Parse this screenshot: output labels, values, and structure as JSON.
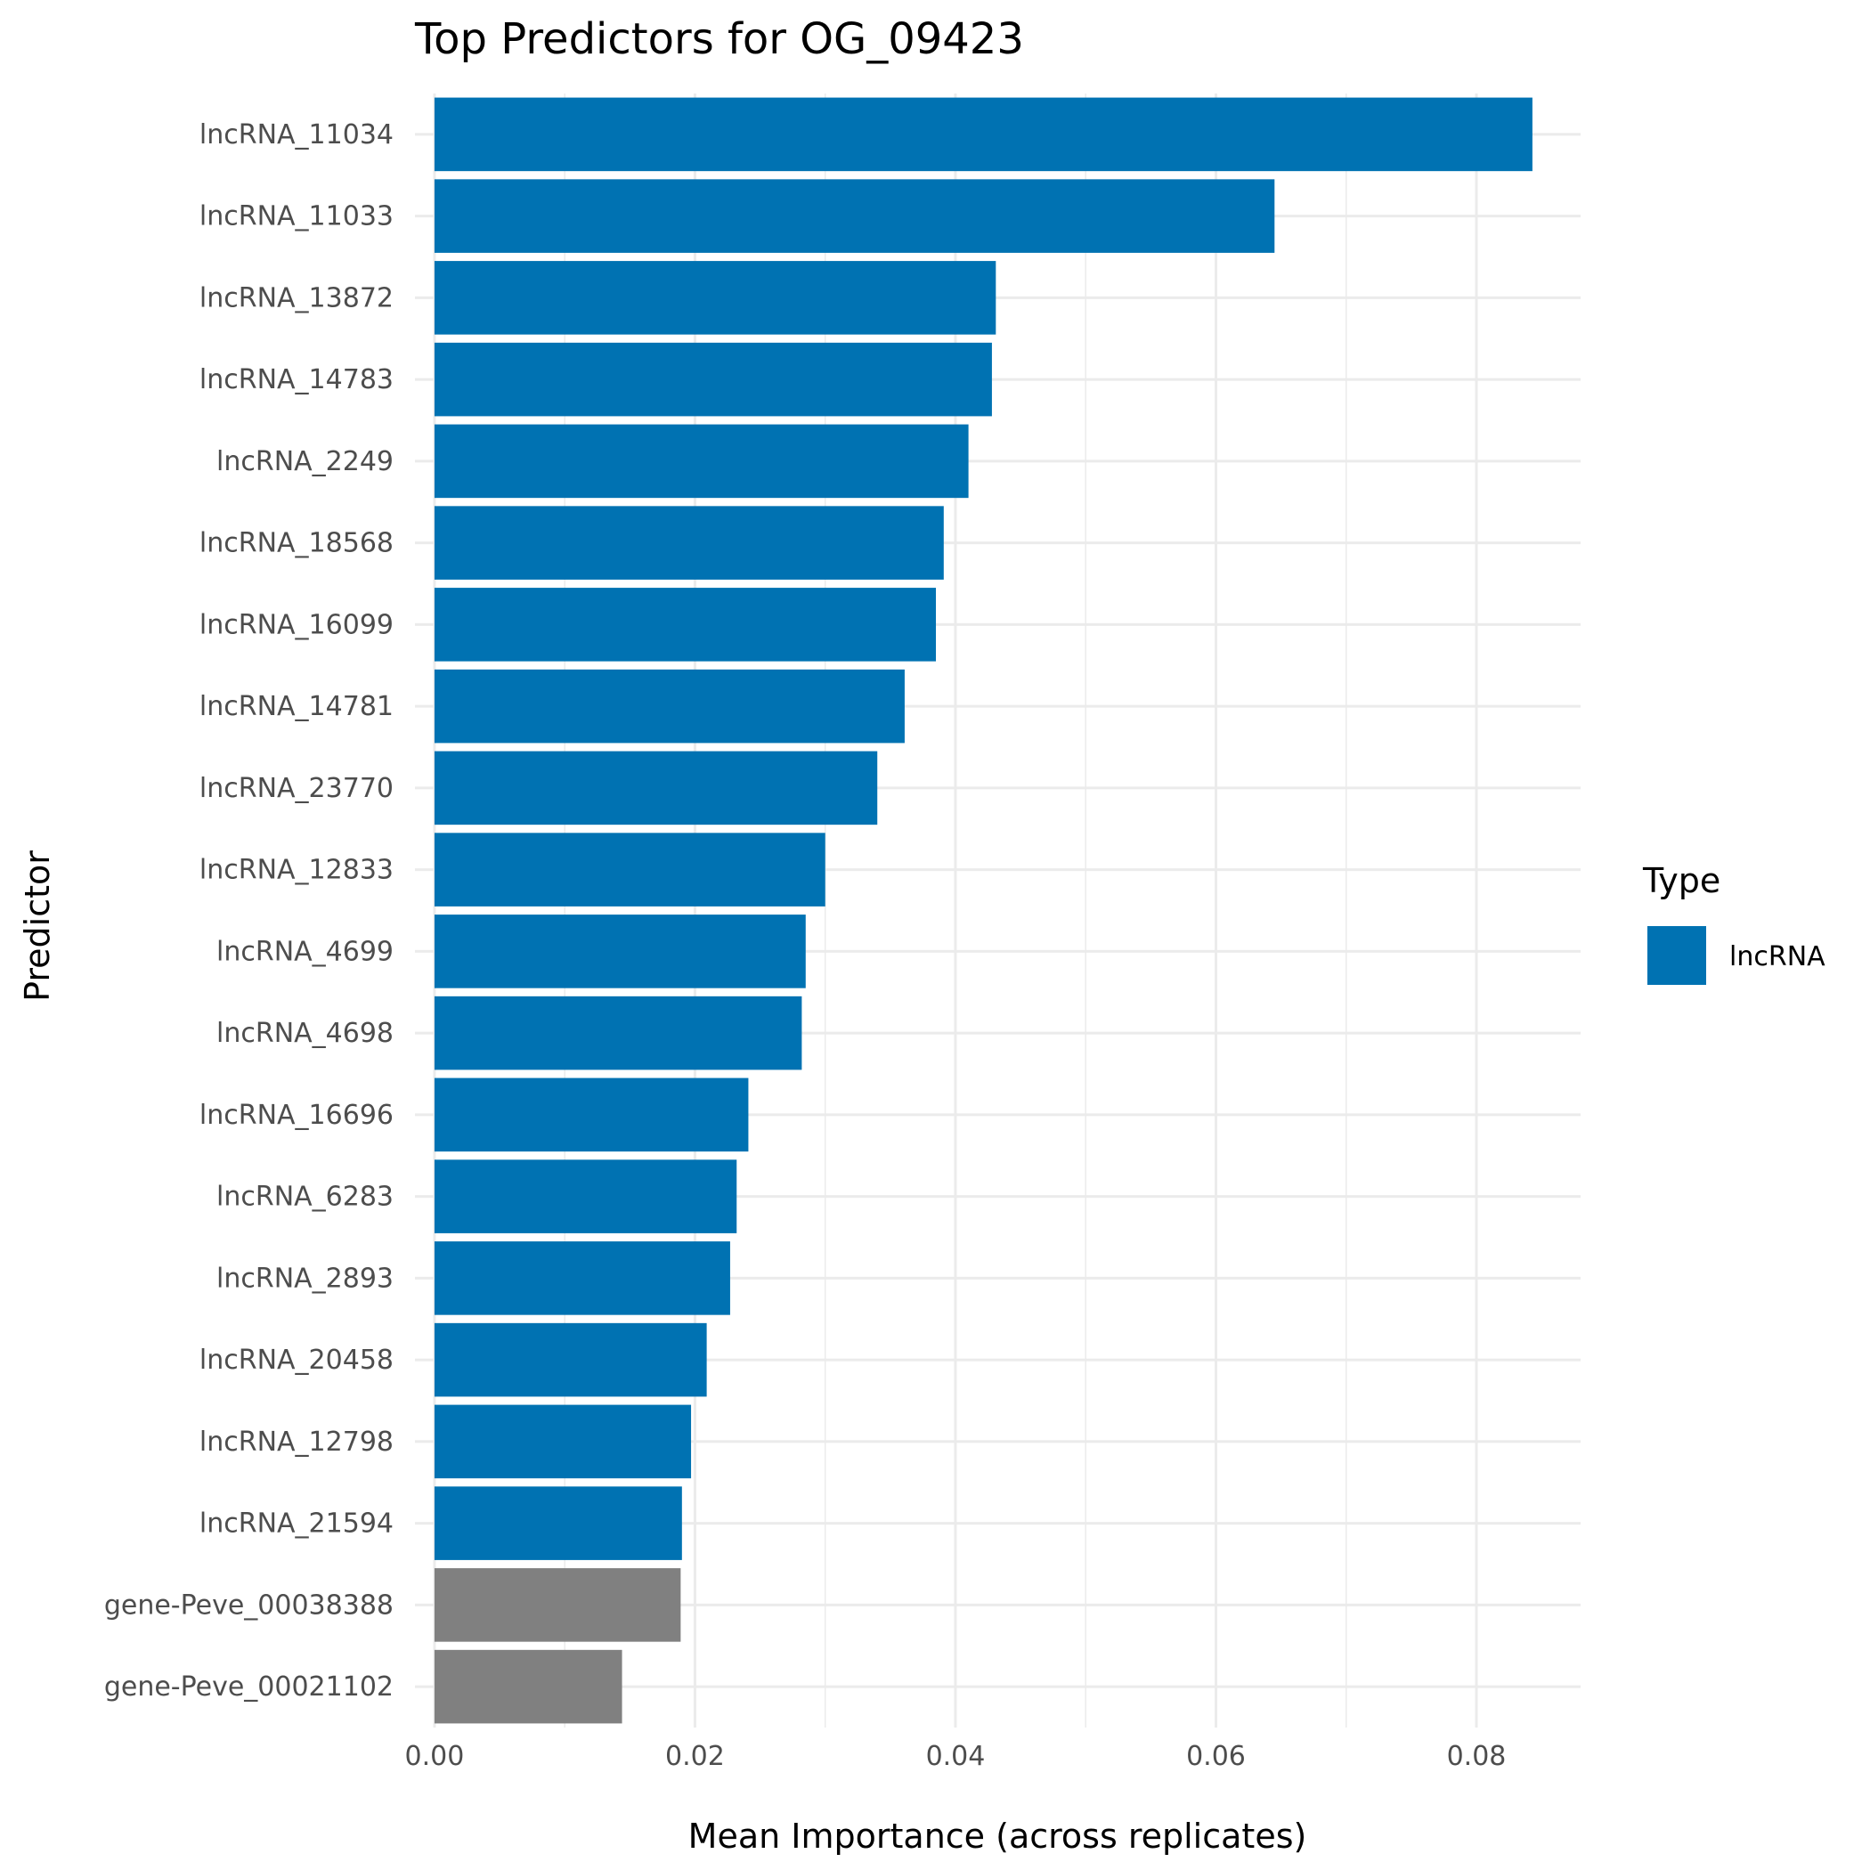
{
  "chart_data": {
    "type": "bar",
    "orientation": "horizontal",
    "title": "Top Predictors for OG_09423",
    "xlabel": "Mean Importance (across replicates)",
    "ylabel": "Predictor",
    "xlim": [
      -0.0015,
      0.088
    ],
    "xticks": [
      0.0,
      0.02,
      0.04,
      0.06,
      0.08
    ],
    "xtick_labels": [
      "0.00",
      "0.02",
      "0.04",
      "0.06",
      "0.08"
    ],
    "grid": true,
    "legend": {
      "title": "Type",
      "placement": "right",
      "entries": [
        {
          "label": "lncRNA",
          "color": "#0072B2"
        }
      ]
    },
    "colors": {
      "lncRNA": "#0072B2",
      "gene": "#808080"
    },
    "categories": [
      "lncRNA_11034",
      "lncRNA_11033",
      "lncRNA_13872",
      "lncRNA_14783",
      "lncRNA_2249",
      "lncRNA_18568",
      "lncRNA_16099",
      "lncRNA_14781",
      "lncRNA_23770",
      "lncRNA_12833",
      "lncRNA_4699",
      "lncRNA_4698",
      "lncRNA_16696",
      "lncRNA_6283",
      "lncRNA_2893",
      "lncRNA_20458",
      "lncRNA_12798",
      "lncRNA_21594",
      "gene-Peve_00038388",
      "gene-Peve_00021102"
    ],
    "values": [
      0.0843,
      0.0645,
      0.0431,
      0.0428,
      0.041,
      0.0391,
      0.0385,
      0.0361,
      0.034,
      0.03,
      0.0285,
      0.0282,
      0.0241,
      0.0232,
      0.0227,
      0.0209,
      0.0197,
      0.019,
      0.0189,
      0.0144
    ],
    "types": [
      "lncRNA",
      "lncRNA",
      "lncRNA",
      "lncRNA",
      "lncRNA",
      "lncRNA",
      "lncRNA",
      "lncRNA",
      "lncRNA",
      "lncRNA",
      "lncRNA",
      "lncRNA",
      "lncRNA",
      "lncRNA",
      "lncRNA",
      "lncRNA",
      "lncRNA",
      "lncRNA",
      "gene",
      "gene"
    ]
  }
}
